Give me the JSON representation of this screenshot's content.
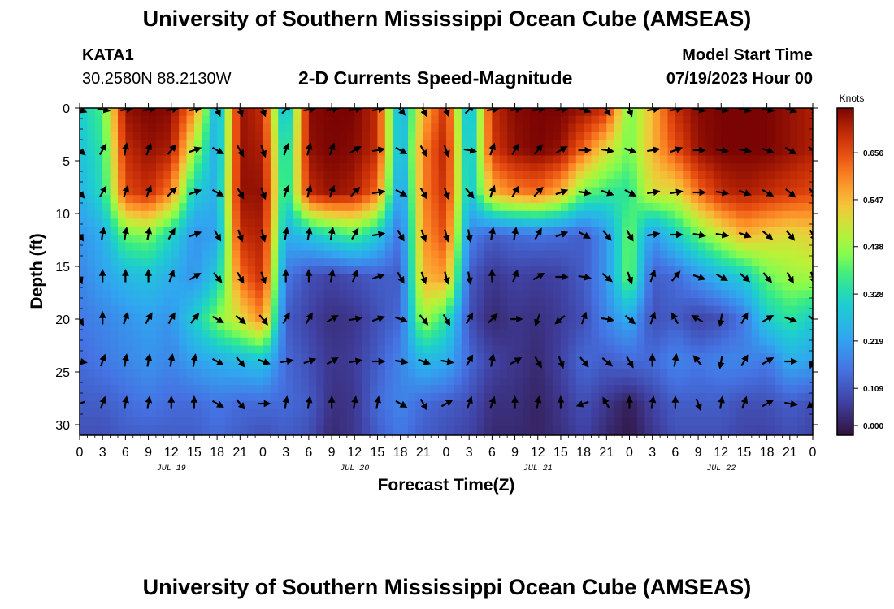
{
  "header": {
    "title": "University of Southern Mississippi Ocean Cube (AMSEAS)",
    "station_id": "KATA1",
    "station_coords": "30.2580N  88.2130W",
    "start_label": "Model Start Time",
    "start_value": "07/19/2023 Hour 00"
  },
  "footer": {
    "title": "University of Southern Mississippi Ocean Cube (AMSEAS)"
  },
  "chart_data": {
    "type": "heatmap",
    "title": "2-D Currents Speed-Magnitude",
    "xlabel": "Forecast Time(Z)",
    "ylabel": "Depth (ft)",
    "xlim": [
      0,
      96
    ],
    "ylim": [
      0,
      31
    ],
    "x_tick_labels": [
      "0",
      "3",
      "6",
      "9",
      "12",
      "15",
      "18",
      "21",
      "0",
      "3",
      "6",
      "9",
      "12",
      "15",
      "18",
      "21",
      "0",
      "3",
      "6",
      "9",
      "12",
      "15",
      "18",
      "21",
      "0",
      "3",
      "6",
      "9",
      "12",
      "15",
      "18",
      "21",
      "0"
    ],
    "y_ticks": [
      0,
      5,
      10,
      15,
      20,
      25,
      30
    ],
    "date_labels": [
      "JUL 19",
      "JUL 20",
      "JUL 21",
      "JUL 22"
    ],
    "colorbar": {
      "title": "Knots",
      "ticks": [
        "0.000",
        "0.109",
        "0.219",
        "0.328",
        "0.438",
        "0.547",
        "0.656"
      ],
      "tick_values": [
        0.0,
        0.109,
        0.219,
        0.328,
        0.438,
        0.547,
        0.656
      ],
      "max": 0.76
    },
    "speed_grid": {
      "x_hours": [
        0,
        3,
        6,
        9,
        12,
        15,
        18,
        21,
        24,
        27,
        30,
        33,
        36,
        39,
        42,
        45,
        48,
        51,
        54,
        57,
        60,
        63,
        66,
        69,
        72,
        75,
        78,
        81,
        84,
        87,
        90,
        93,
        96
      ],
      "depths_ft": [
        0,
        4,
        8,
        12,
        16,
        20,
        24,
        28,
        31
      ],
      "values": [
        [
          0.3,
          0.38,
          0.74,
          0.76,
          0.75,
          0.6,
          0.22,
          0.74,
          0.7,
          0.22,
          0.75,
          0.76,
          0.76,
          0.7,
          0.22,
          0.55,
          0.7,
          0.22,
          0.7,
          0.75,
          0.76,
          0.76,
          0.74,
          0.7,
          0.4,
          0.55,
          0.7,
          0.75,
          0.76,
          0.76,
          0.76,
          0.74,
          0.72
        ],
        [
          0.28,
          0.35,
          0.7,
          0.74,
          0.72,
          0.45,
          0.22,
          0.74,
          0.72,
          0.28,
          0.74,
          0.76,
          0.75,
          0.7,
          0.22,
          0.6,
          0.72,
          0.24,
          0.68,
          0.74,
          0.76,
          0.74,
          0.62,
          0.5,
          0.4,
          0.55,
          0.65,
          0.74,
          0.76,
          0.76,
          0.76,
          0.74,
          0.72
        ],
        [
          0.25,
          0.33,
          0.66,
          0.7,
          0.6,
          0.3,
          0.24,
          0.74,
          0.74,
          0.3,
          0.7,
          0.74,
          0.72,
          0.62,
          0.18,
          0.6,
          0.7,
          0.26,
          0.55,
          0.6,
          0.62,
          0.55,
          0.4,
          0.36,
          0.35,
          0.5,
          0.5,
          0.62,
          0.7,
          0.72,
          0.7,
          0.68,
          0.66
        ],
        [
          0.2,
          0.24,
          0.4,
          0.42,
          0.32,
          0.2,
          0.22,
          0.7,
          0.72,
          0.24,
          0.28,
          0.34,
          0.38,
          0.3,
          0.14,
          0.58,
          0.66,
          0.18,
          0.12,
          0.14,
          0.15,
          0.14,
          0.12,
          0.2,
          0.42,
          0.2,
          0.3,
          0.4,
          0.48,
          0.55,
          0.52,
          0.5,
          0.52
        ],
        [
          0.18,
          0.22,
          0.26,
          0.28,
          0.24,
          0.2,
          0.3,
          0.62,
          0.7,
          0.16,
          0.1,
          0.08,
          0.1,
          0.12,
          0.12,
          0.55,
          0.58,
          0.12,
          0.06,
          0.08,
          0.07,
          0.08,
          0.12,
          0.2,
          0.42,
          0.12,
          0.14,
          0.2,
          0.26,
          0.3,
          0.4,
          0.44,
          0.45
        ],
        [
          0.16,
          0.18,
          0.2,
          0.22,
          0.2,
          0.3,
          0.42,
          0.5,
          0.6,
          0.12,
          0.08,
          0.05,
          0.06,
          0.1,
          0.14,
          0.45,
          0.35,
          0.1,
          0.04,
          0.06,
          0.05,
          0.07,
          0.1,
          0.18,
          0.24,
          0.1,
          0.12,
          0.08,
          0.1,
          0.16,
          0.3,
          0.35,
          0.3
        ],
        [
          0.14,
          0.16,
          0.18,
          0.2,
          0.18,
          0.22,
          0.24,
          0.26,
          0.28,
          0.14,
          0.1,
          0.06,
          0.07,
          0.12,
          0.18,
          0.26,
          0.24,
          0.14,
          0.08,
          0.06,
          0.04,
          0.08,
          0.14,
          0.12,
          0.14,
          0.14,
          0.18,
          0.16,
          0.18,
          0.18,
          0.16,
          0.24,
          0.22
        ],
        [
          0.12,
          0.12,
          0.14,
          0.16,
          0.14,
          0.14,
          0.16,
          0.14,
          0.14,
          0.14,
          0.12,
          0.05,
          0.06,
          0.14,
          0.18,
          0.14,
          0.12,
          0.1,
          0.05,
          0.05,
          0.03,
          0.06,
          0.1,
          0.06,
          0.02,
          0.08,
          0.12,
          0.12,
          0.12,
          0.1,
          0.1,
          0.12,
          0.1
        ],
        [
          0.1,
          0.1,
          0.12,
          0.12,
          0.12,
          0.12,
          0.14,
          0.12,
          0.1,
          0.12,
          0.1,
          0.04,
          0.06,
          0.12,
          0.16,
          0.12,
          0.1,
          0.08,
          0.04,
          0.04,
          0.03,
          0.05,
          0.08,
          0.04,
          0.01,
          0.06,
          0.1,
          0.1,
          0.1,
          0.08,
          0.08,
          0.1,
          0.08
        ]
      ]
    },
    "current_arrows": {
      "x_hours": [
        0,
        3,
        6,
        9,
        12,
        15,
        18,
        21,
        24,
        27,
        30,
        33,
        36,
        39,
        42,
        45,
        48,
        51,
        54,
        57,
        60,
        63,
        66,
        69,
        72,
        75,
        78,
        81,
        84,
        87,
        90,
        93,
        96
      ],
      "depths_ft": [
        0,
        4,
        8,
        12,
        16,
        20,
        24,
        28
      ],
      "direction_deg": [
        [
          110,
          100,
          80,
          80,
          80,
          80,
          155,
          160,
          160,
          45,
          80,
          80,
          80,
          80,
          140,
          155,
          160,
          45,
          80,
          80,
          80,
          80,
          110,
          150,
          160,
          80,
          80,
          100,
          100,
          100,
          100,
          110,
          130
        ],
        [
          130,
          30,
          10,
          20,
          40,
          70,
          120,
          150,
          160,
          20,
          15,
          20,
          60,
          80,
          120,
          150,
          160,
          100,
          20,
          30,
          40,
          60,
          90,
          100,
          110,
          80,
          70,
          90,
          100,
          100,
          110,
          120,
          130
        ],
        [
          140,
          30,
          20,
          20,
          45,
          70,
          120,
          150,
          160,
          20,
          15,
          20,
          45,
          80,
          120,
          150,
          160,
          140,
          20,
          30,
          45,
          70,
          100,
          110,
          120,
          80,
          80,
          90,
          100,
          110,
          120,
          130,
          140
        ],
        [
          150,
          10,
          10,
          10,
          30,
          70,
          150,
          160,
          165,
          10,
          10,
          10,
          30,
          80,
          150,
          160,
          165,
          170,
          10,
          10,
          30,
          70,
          120,
          140,
          150,
          80,
          90,
          100,
          100,
          110,
          130,
          140,
          150
        ],
        [
          160,
          0,
          0,
          0,
          20,
          60,
          140,
          150,
          160,
          0,
          0,
          10,
          20,
          70,
          150,
          160,
          165,
          170,
          0,
          20,
          60,
          90,
          100,
          130,
          160,
          20,
          40,
          110,
          120,
          130,
          140,
          150,
          160
        ],
        [
          150,
          0,
          20,
          30,
          30,
          40,
          120,
          130,
          140,
          30,
          30,
          60,
          80,
          70,
          110,
          140,
          150,
          30,
          45,
          90,
          200,
          230,
          20,
          100,
          130,
          20,
          330,
          300,
          190,
          30,
          60,
          110,
          130
        ],
        [
          100,
          20,
          10,
          10,
          10,
          10,
          120,
          140,
          110,
          80,
          70,
          60,
          80,
          90,
          100,
          110,
          100,
          30,
          10,
          60,
          150,
          160,
          140,
          130,
          150,
          0,
          10,
          320,
          190,
          30,
          60,
          90,
          200
        ],
        [
          250,
          20,
          10,
          10,
          0,
          0,
          120,
          140,
          90,
          10,
          10,
          0,
          10,
          10,
          120,
          150,
          60,
          20,
          20,
          0,
          10,
          0,
          250,
          330,
          0,
          10,
          0,
          160,
          10,
          20,
          60,
          100,
          230
        ]
      ]
    }
  }
}
